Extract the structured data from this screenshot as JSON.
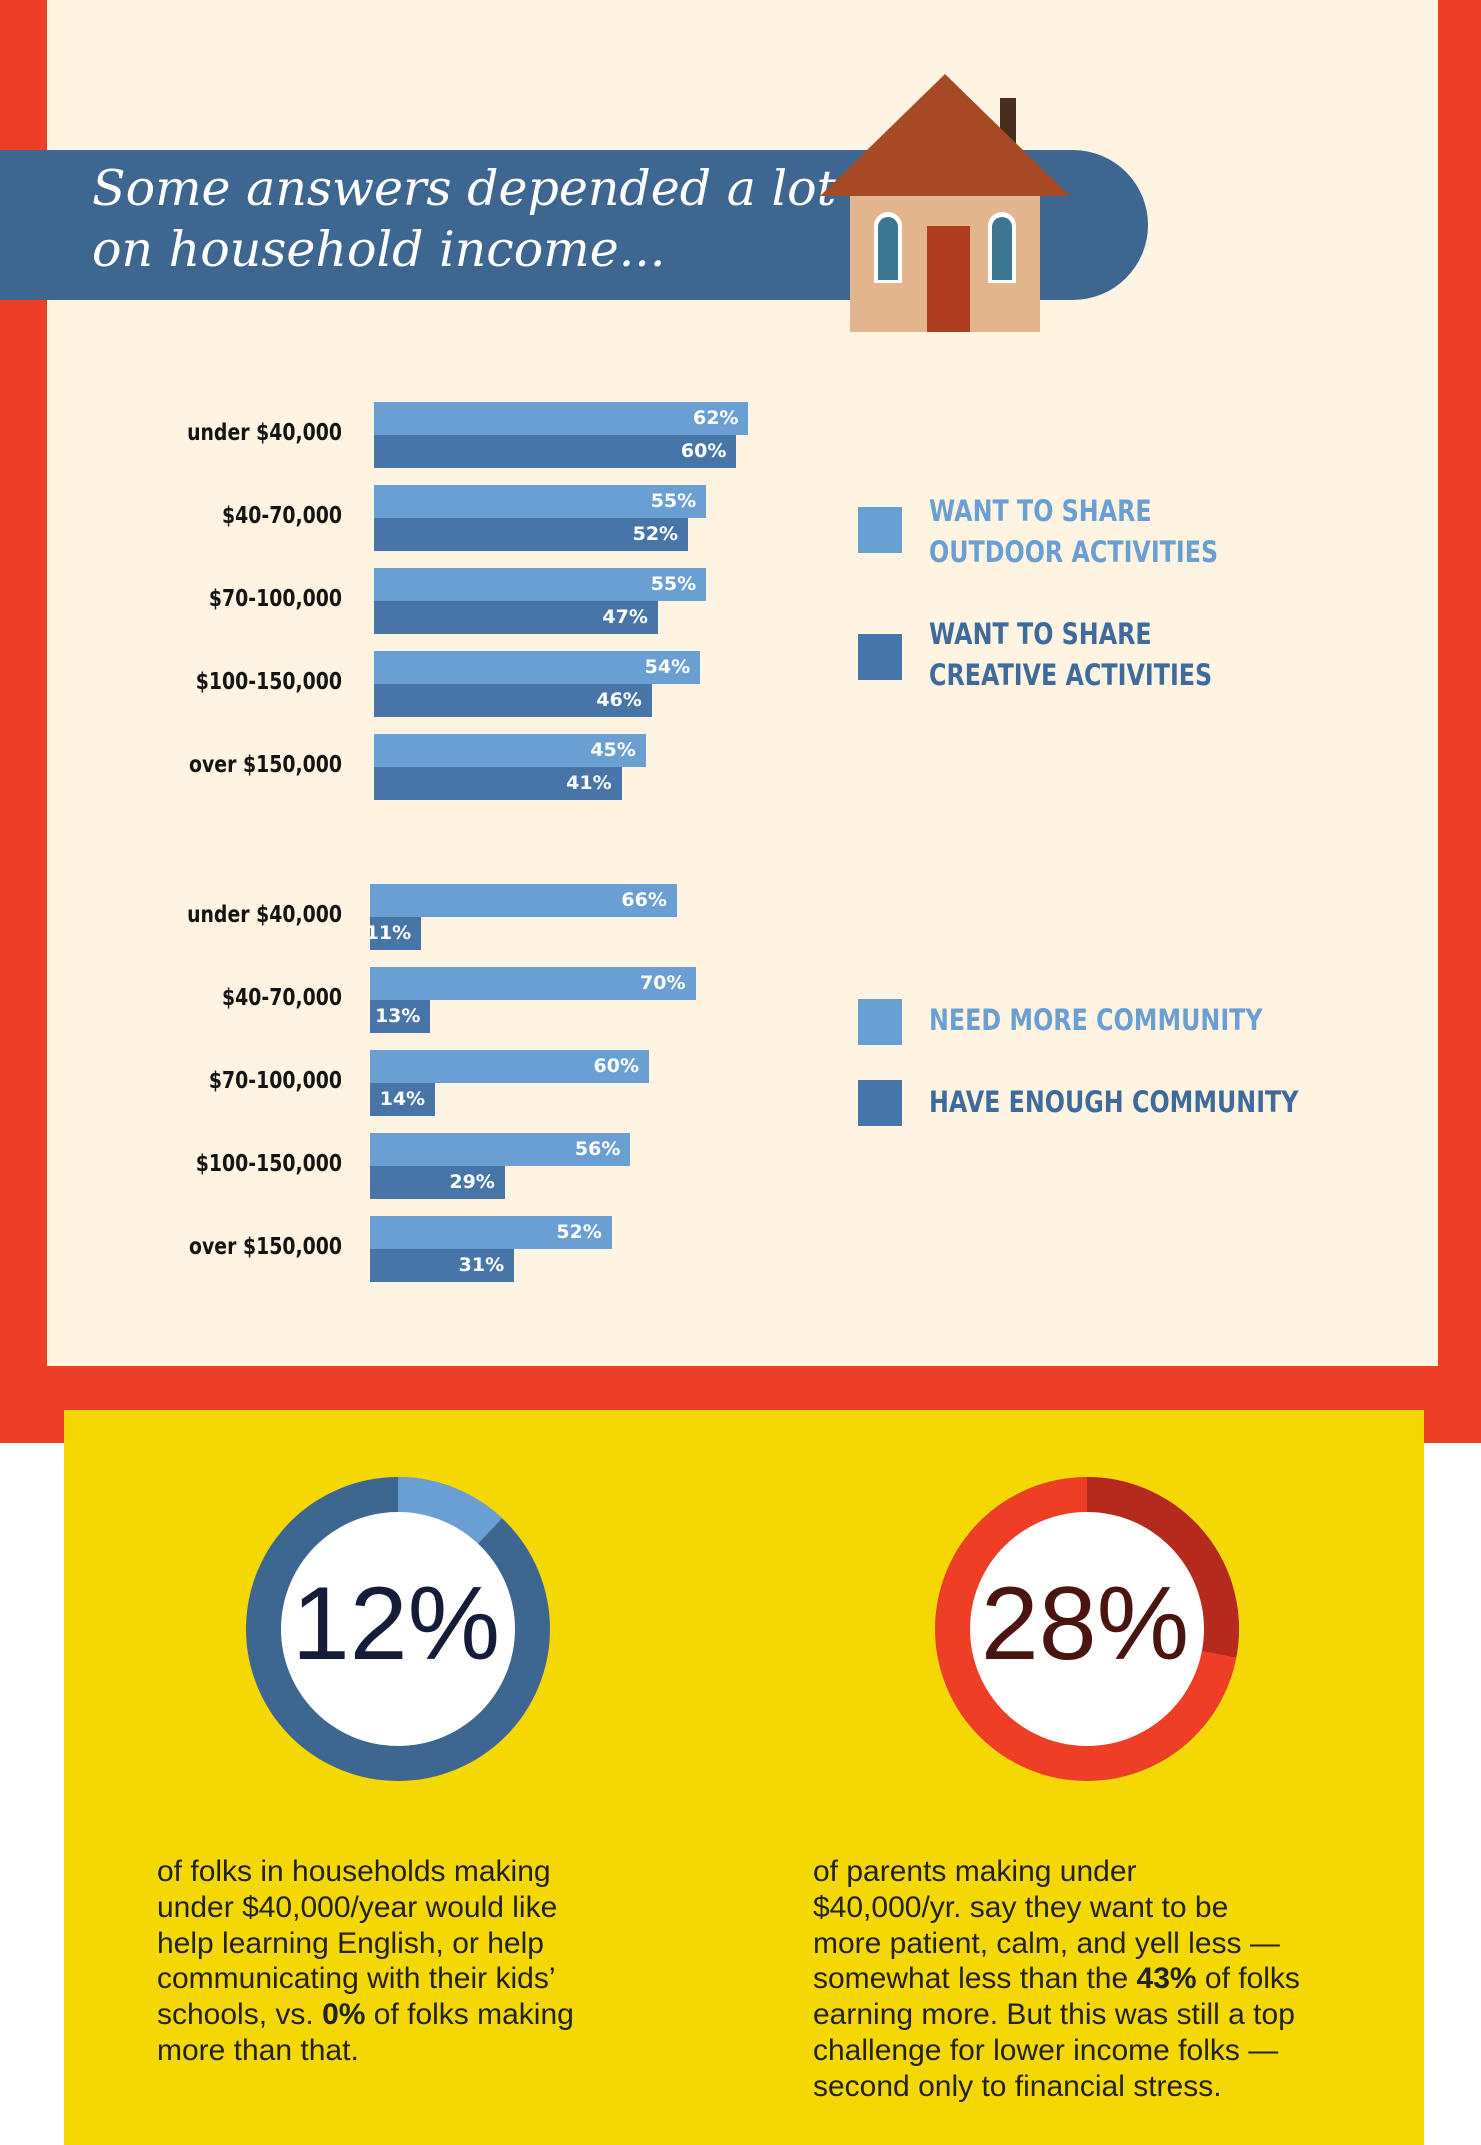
{
  "header": {
    "line1": "Some answers depended a lot",
    "line2": "on household income..."
  },
  "colors": {
    "frame": "#ee3e26",
    "cream": "#fff4e2",
    "banner": "#3d6690",
    "light_bar": "#6a9fd4",
    "dark_bar": "#4875a8",
    "yellow": "#f4d803"
  },
  "chart_data": [
    {
      "type": "bar",
      "orientation": "horizontal",
      "categories": [
        "under $40,000",
        "$40-70,000",
        "$70-100,000",
        "$100-150,000",
        "over $150,000"
      ],
      "series": [
        {
          "name": "WANT TO SHARE OUTDOOR ACTIVITIES",
          "values": [
            62,
            55,
            55,
            54,
            45
          ],
          "labels": [
            "62%",
            "55%",
            "55%",
            "54%",
            "45%"
          ]
        },
        {
          "name": "WANT TO SHARE CREATIVE ACTIVITIES",
          "values": [
            60,
            52,
            47,
            46,
            41
          ],
          "labels": [
            "60%",
            "52%",
            "47%",
            "46%",
            "41%"
          ]
        }
      ],
      "legend": [
        {
          "line1": "WANT TO SHARE",
          "line2": "OUTDOOR ACTIVITIES"
        },
        {
          "line1": "WANT TO SHARE",
          "line2": "CREATIVE ACTIVITIES"
        }
      ],
      "legend_position": "right"
    },
    {
      "type": "bar",
      "orientation": "horizontal",
      "categories": [
        "under $40,000",
        "$40-70,000",
        "$70-100,000",
        "$100-150,000",
        "over $150,000"
      ],
      "series": [
        {
          "name": "NEED MORE COMMUNITY",
          "values": [
            66,
            70,
            60,
            56,
            52
          ],
          "labels": [
            "66%",
            "70%",
            "60%",
            "56%",
            "52%"
          ]
        },
        {
          "name": "HAVE ENOUGH COMMUNITY",
          "values": [
            11,
            13,
            14,
            29,
            31
          ],
          "labels": [
            "11%",
            "13%",
            "14%",
            "29%",
            "31%"
          ]
        }
      ],
      "legend": [
        {
          "line1": "NEED MORE COMMUNITY"
        },
        {
          "line1": "HAVE ENOUGH COMMUNITY"
        }
      ],
      "legend_position": "right"
    }
  ],
  "stats": [
    {
      "value": 12,
      "label": "12%",
      "ring_color": "#3d6690",
      "highlight_color": "#6a9fd4",
      "text_color": "#141c3a",
      "lines": [
        "of folks in households making",
        "under $40,000/year would like",
        "help learning English, or help",
        "communicating with their kids’",
        "schools, vs. ",
        "0%",
        " of folks making",
        "more than that."
      ]
    },
    {
      "value": 28,
      "label": "28%",
      "ring_color": "#ee3e26",
      "highlight_color": "#b52a1c",
      "text_color": "#4a1410",
      "lines": [
        "of parents making under",
        "$40,000/yr. say they want to be",
        "more patient, calm, and yell less —",
        "somewhat less than the ",
        "43%",
        " of folks",
        "earning more. But this was still a top",
        "challenge for lower income folks —",
        "second only to financial stress."
      ]
    }
  ]
}
